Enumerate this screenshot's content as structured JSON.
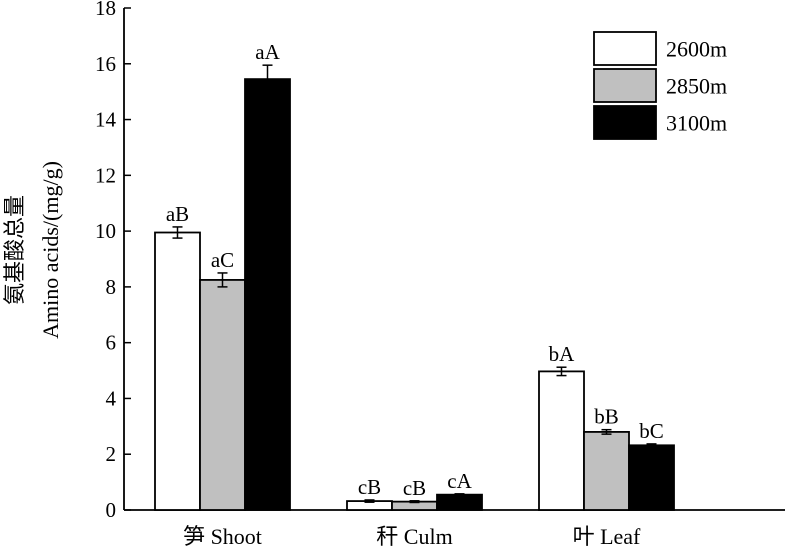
{
  "chart_data": {
    "type": "bar",
    "title": "",
    "ylabel_cn": "氨基酸总量",
    "ylabel": "Amino acids/(mg/g)",
    "xlabel": "",
    "ylim": [
      0,
      18
    ],
    "yticks": [
      0,
      2,
      4,
      6,
      8,
      10,
      12,
      14,
      16,
      18
    ],
    "categories": [
      "笋 Shoot",
      "秆 Culm",
      "叶 Leaf"
    ],
    "legend_position": "top-right",
    "series": [
      {
        "name": "2600m",
        "color": "#ffffff",
        "values": [
          9.95,
          0.32,
          4.97
        ],
        "errors": [
          0.2,
          0.04,
          0.15
        ],
        "labels": [
          "aB",
          "cB",
          "bA"
        ]
      },
      {
        "name": "2850m",
        "color": "#c0c0c0",
        "values": [
          8.25,
          0.3,
          2.8
        ],
        "errors": [
          0.25,
          0.03,
          0.08
        ],
        "labels": [
          "aC",
          "cB",
          "bB"
        ]
      },
      {
        "name": "3100m",
        "color": "#000000",
        "values": [
          15.45,
          0.55,
          2.32
        ],
        "errors": [
          0.5,
          0.03,
          0.05
        ],
        "labels": [
          "aA",
          "cA",
          "bC"
        ]
      }
    ]
  }
}
